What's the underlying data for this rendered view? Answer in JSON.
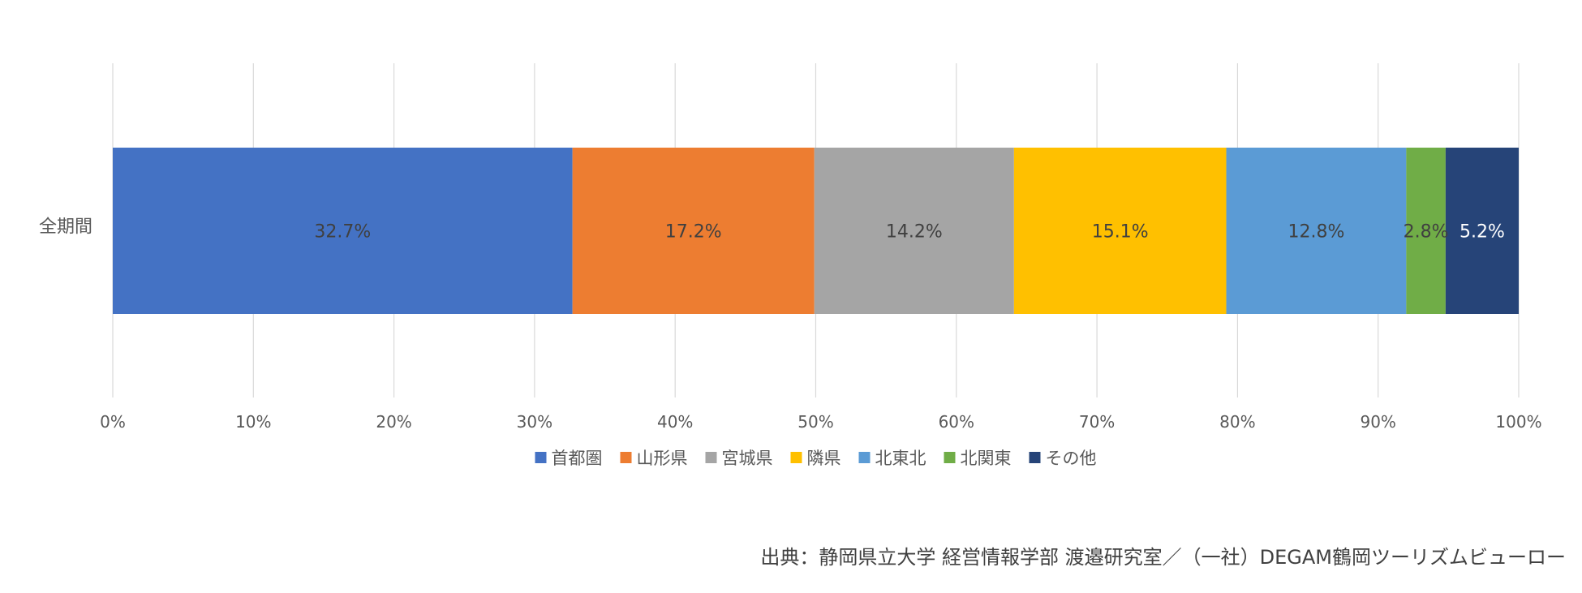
{
  "chart_data": {
    "type": "bar",
    "orientation": "horizontal",
    "stacked": "percent",
    "categories": [
      "全期間"
    ],
    "series": [
      {
        "name": "首都圏",
        "values": [
          32.7
        ],
        "label": "32.7%",
        "color": "#4472C4",
        "label_color": "#404040"
      },
      {
        "name": "山形県",
        "values": [
          17.2
        ],
        "label": "17.2%",
        "color": "#ED7D31",
        "label_color": "#404040"
      },
      {
        "name": "宮城県",
        "values": [
          14.2
        ],
        "label": "14.2%",
        "color": "#A5A5A5",
        "label_color": "#404040"
      },
      {
        "name": "隣県",
        "values": [
          15.1
        ],
        "label": "15.1%",
        "color": "#FFC000",
        "label_color": "#404040"
      },
      {
        "name": "北東北",
        "values": [
          12.8
        ],
        "label": "12.8%",
        "color": "#5B9BD5",
        "label_color": "#404040"
      },
      {
        "name": "北関東",
        "values": [
          2.8
        ],
        "label": "2.8%",
        "color": "#70AD47",
        "label_color": "#404040"
      },
      {
        "name": "その他",
        "values": [
          5.2
        ],
        "label": "5.2%",
        "color": "#264478",
        "label_color": "#FFFFFF"
      }
    ],
    "xticks": [
      "0%",
      "10%",
      "20%",
      "30%",
      "40%",
      "50%",
      "60%",
      "70%",
      "80%",
      "90%",
      "100%"
    ],
    "xlim": [
      0,
      100
    ],
    "grid": true,
    "legend_position": "bottom"
  },
  "source": "出典：静岡県立大学 経営情報学部 渡邉研究室／（一社）DEGAM鶴岡ツーリズムビューロー"
}
